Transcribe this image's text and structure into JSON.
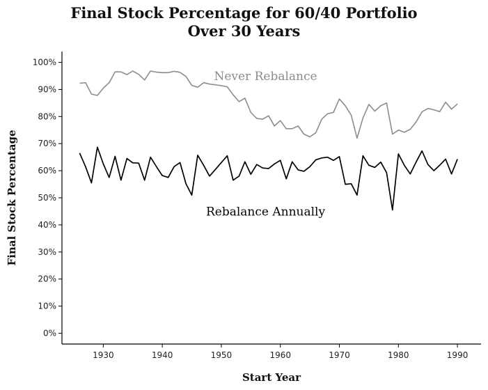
{
  "chart_data": {
    "type": "line",
    "title_line1": "Final Stock Percentage for 60/40 Portfolio",
    "title_line2": "Over 30 Years",
    "xlabel": "Start Year",
    "ylabel": "Final Stock Percentage",
    "xlim": [
      1923,
      1994
    ],
    "ylim": [
      -4,
      104
    ],
    "x_ticks": [
      1930,
      1940,
      1950,
      1960,
      1970,
      1980,
      1990
    ],
    "x_tick_labels": [
      "1930",
      "1940",
      "1950",
      "1960",
      "1970",
      "1980",
      "1990"
    ],
    "y_ticks": [
      0,
      10,
      20,
      30,
      40,
      50,
      60,
      70,
      80,
      90,
      100
    ],
    "y_tick_labels": [
      "0%",
      "10%",
      "20%",
      "30%",
      "40%",
      "50%",
      "60%",
      "70%",
      "80%",
      "90%",
      "100%"
    ],
    "grid": false,
    "legend": "direct-labels",
    "x": [
      1926,
      1927,
      1928,
      1929,
      1930,
      1931,
      1932,
      1933,
      1934,
      1935,
      1936,
      1937,
      1938,
      1939,
      1940,
      1941,
      1942,
      1943,
      1944,
      1945,
      1946,
      1947,
      1948,
      1949,
      1950,
      1951,
      1952,
      1953,
      1954,
      1955,
      1956,
      1957,
      1958,
      1959,
      1960,
      1961,
      1962,
      1963,
      1964,
      1965,
      1966,
      1967,
      1968,
      1969,
      1970,
      1971,
      1972,
      1973,
      1974,
      1975,
      1976,
      1977,
      1978,
      1979,
      1980,
      1981,
      1982,
      1983,
      1984,
      1985,
      1986,
      1987,
      1988,
      1989,
      1990
    ],
    "series": [
      {
        "name": "Never Rebalance",
        "color": "#8c8c8c",
        "label_x": 1957.5,
        "label_y": 95,
        "values": [
          92.3,
          92.5,
          88.3,
          87.8,
          90.5,
          92.5,
          96.5,
          96.5,
          95.5,
          96.8,
          95.6,
          93.5,
          96.8,
          96.4,
          96.2,
          96.2,
          96.7,
          96.3,
          94.8,
          91.5,
          90.8,
          92.5,
          92.0,
          91.7,
          91.4,
          91.0,
          88.0,
          85.5,
          86.8,
          81.5,
          79.3,
          79.0,
          80.3,
          76.5,
          78.5,
          75.5,
          75.5,
          76.5,
          73.5,
          72.5,
          74.0,
          79.0,
          81.0,
          81.5,
          86.5,
          84.0,
          80.5,
          72.0,
          79.5,
          84.5,
          82.0,
          84.0,
          85.0,
          73.5,
          75.0,
          74.2,
          75.3,
          78.0,
          81.7,
          83.0,
          82.5,
          81.8,
          85.3,
          82.7,
          84.7
        ]
      },
      {
        "name": "Rebalance Annually",
        "color": "#000000",
        "label_x": 1957.5,
        "label_y": 45,
        "values": [
          66.5,
          61.5,
          55.5,
          68.7,
          62.5,
          57.5,
          65.3,
          56.5,
          64.5,
          62.9,
          62.8,
          56.5,
          65.0,
          61.5,
          58.2,
          57.5,
          61.5,
          63.0,
          55.2,
          51.0,
          65.7,
          62.0,
          58.0,
          60.5,
          63.0,
          65.5,
          56.5,
          58.0,
          63.3,
          58.7,
          62.3,
          61.0,
          60.8,
          62.5,
          63.8,
          57.0,
          63.3,
          60.3,
          59.8,
          61.5,
          64.0,
          64.7,
          65.0,
          63.8,
          65.2,
          55.0,
          55.2,
          51.0,
          65.5,
          62.0,
          61.2,
          63.2,
          59.3,
          45.5,
          66.2,
          62.0,
          58.8,
          63.2,
          67.3,
          62.3,
          60.0,
          62.0,
          64.3,
          58.8,
          64.3
        ]
      }
    ]
  }
}
